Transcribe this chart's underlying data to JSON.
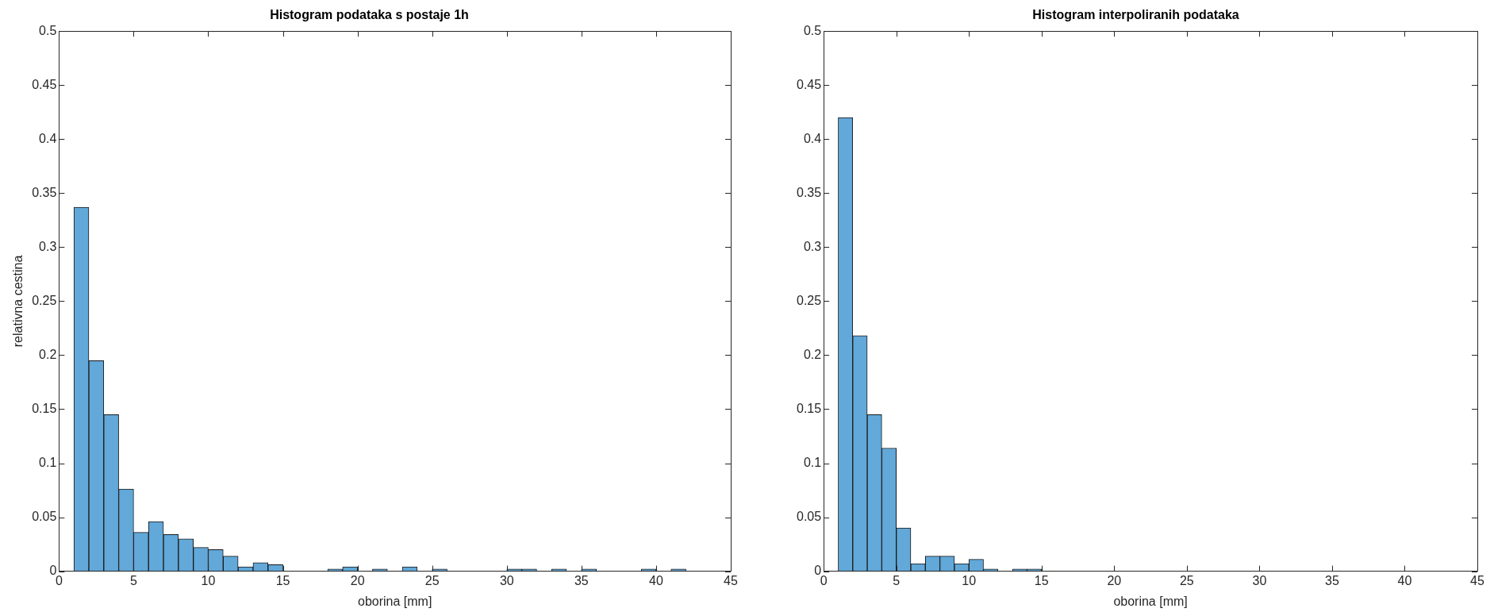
{
  "chart_data": [
    {
      "type": "histogram",
      "title": "Histogram podataka s postaje 1h",
      "xlabel": "oborina [mm]",
      "ylabel": "relativna cestina",
      "color": "#62a8d8",
      "bins": [
        1,
        2,
        3,
        4,
        5,
        6,
        7,
        8,
        9,
        10,
        11,
        12,
        13,
        14,
        15,
        16,
        17,
        18,
        19,
        20,
        21,
        22,
        23,
        24,
        25,
        26,
        27,
        28,
        29,
        30,
        31,
        32,
        33,
        34,
        35,
        36,
        37,
        38,
        39,
        40,
        41,
        42
      ],
      "values": [
        0.337,
        0.195,
        0.145,
        0.076,
        0.036,
        0.046,
        0.034,
        0.03,
        0.022,
        0.02,
        0.014,
        0.004,
        0.008,
        0.006,
        0,
        0,
        0,
        0.002,
        0.004,
        0,
        0.002,
        0,
        0.004,
        0,
        0.002,
        0,
        0,
        0,
        0,
        0.002,
        0.002,
        0,
        0.002,
        0,
        0.002,
        0,
        0,
        0,
        0.002,
        0,
        0.002
      ],
      "xlim": [
        0,
        45
      ],
      "xticks": [
        0,
        5,
        10,
        15,
        20,
        25,
        30,
        35,
        40,
        45
      ],
      "ylim": [
        0,
        0.5
      ],
      "yticks": [
        0,
        0.05,
        0.1,
        0.15,
        0.2,
        0.25,
        0.3,
        0.35,
        0.4,
        0.45,
        0.5
      ],
      "grid": false,
      "legend": false
    },
    {
      "type": "histogram",
      "title": "Histogram interpoliranih podataka",
      "xlabel": "oborina [mm]",
      "color": "#62a8d8",
      "bins": [
        1,
        2,
        3,
        4,
        5,
        6,
        7,
        8,
        9,
        10,
        11,
        12,
        13,
        14,
        15
      ],
      "values": [
        0.42,
        0.218,
        0.145,
        0.114,
        0.04,
        0.007,
        0.014,
        0.014,
        0.007,
        0.011,
        0.002,
        0,
        0.002,
        0.002
      ],
      "xlim": [
        0,
        45
      ],
      "xticks": [
        0,
        5,
        10,
        15,
        20,
        25,
        30,
        35,
        40,
        45
      ],
      "ylim": [
        0,
        0.5
      ],
      "yticks": [
        0,
        0.05,
        0.1,
        0.15,
        0.2,
        0.25,
        0.3,
        0.35,
        0.4,
        0.45,
        0.5
      ],
      "grid": false,
      "legend": false
    }
  ]
}
